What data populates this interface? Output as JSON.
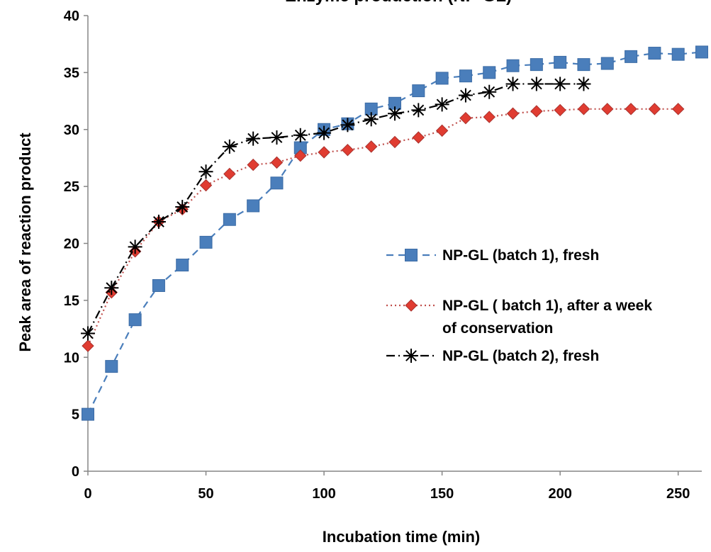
{
  "chart_data": {
    "type": "line",
    "title": "Enzyme production (NP-GL)",
    "xlabel": "Incubation time (min)",
    "ylabel": "Peak area of reaction product",
    "xlim": [
      0,
      260
    ],
    "ylim": [
      0,
      40
    ],
    "xticks": [
      0,
      50,
      100,
      150,
      200,
      250
    ],
    "yticks": [
      0,
      5,
      10,
      15,
      20,
      25,
      30,
      35,
      40
    ],
    "grid": false,
    "legend_position": "right-middle",
    "series": [
      {
        "name": "NP-GL (batch 1), fresh",
        "color": "#4A7EBB",
        "line_style": "dashed",
        "marker": "square",
        "x": [
          0,
          10,
          20,
          30,
          40,
          50,
          60,
          70,
          80,
          90,
          100,
          110,
          120,
          130,
          140,
          150,
          160,
          170,
          180,
          190,
          200,
          210,
          220,
          230,
          240,
          250,
          260
        ],
        "y": [
          5.0,
          9.2,
          13.3,
          16.3,
          18.1,
          20.1,
          22.1,
          23.3,
          25.3,
          28.4,
          30.0,
          30.5,
          31.8,
          32.3,
          33.4,
          34.5,
          34.7,
          35.0,
          35.6,
          35.7,
          35.9,
          35.7,
          35.8,
          36.4,
          36.7,
          36.6,
          36.8
        ]
      },
      {
        "name": "NP-GL ( batch 1), after a week of conservation",
        "name_lines": [
          "NP-GL ( batch 1), after a week",
          "of conservation"
        ],
        "color": "#C0504D",
        "line_style": "dotted",
        "marker": "diamond",
        "x": [
          0,
          10,
          20,
          30,
          40,
          50,
          60,
          70,
          80,
          90,
          100,
          110,
          120,
          130,
          140,
          150,
          160,
          170,
          180,
          190,
          200,
          210,
          220,
          230,
          240,
          250
        ],
        "y": [
          11.0,
          15.7,
          19.3,
          21.9,
          23.0,
          25.1,
          26.1,
          26.9,
          27.1,
          27.7,
          28.0,
          28.2,
          28.5,
          28.9,
          29.3,
          29.9,
          31.0,
          31.1,
          31.4,
          31.6,
          31.7,
          31.8,
          31.8,
          31.8,
          31.8,
          31.8
        ]
      },
      {
        "name": "NP-GL (batch 2), fresh",
        "color": "#000000",
        "line_style": "dash-dot",
        "marker": "asterisk",
        "x": [
          0,
          10,
          20,
          30,
          40,
          50,
          60,
          70,
          80,
          90,
          100,
          110,
          120,
          130,
          140,
          150,
          160,
          170,
          180,
          190,
          200,
          210
        ],
        "y": [
          12.1,
          16.1,
          19.7,
          21.9,
          23.2,
          26.3,
          28.5,
          29.2,
          29.3,
          29.5,
          29.7,
          30.4,
          30.9,
          31.4,
          31.7,
          32.2,
          33.0,
          33.3,
          34.0,
          34.0,
          34.0,
          34.0
        ]
      }
    ]
  }
}
